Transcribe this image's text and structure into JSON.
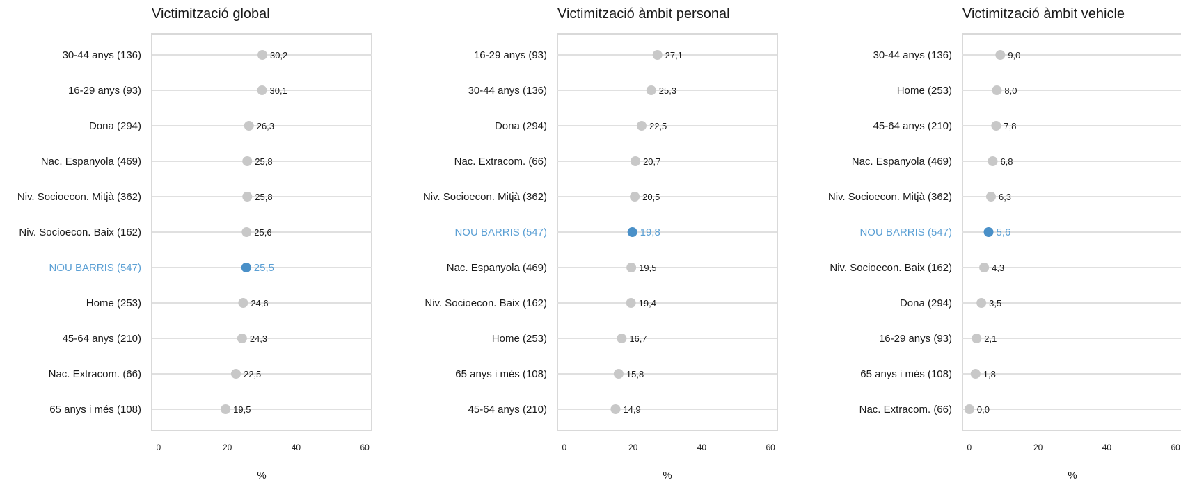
{
  "colors": {
    "highlight": "#4a90c8",
    "highlight_text": "#5a9fd4",
    "point": "#c8c8c8",
    "gridline": "#e0e0e0",
    "frame": "#d9d9d9",
    "text": "#1a1a1a"
  },
  "chart_data": [
    {
      "type": "scatter",
      "title": "Victimització global",
      "xlabel": "%",
      "xlim": [
        -2,
        62
      ],
      "xticks": [
        0,
        20,
        40,
        60
      ],
      "grid": true,
      "highlight": "NOU BARRIS (547)",
      "categories": [
        "30-44 anys (136)",
        "16-29 anys (93)",
        "Dona (294)",
        "Nac. Espanyola (469)",
        "Niv. Socioecon. Mitjà (362)",
        "Niv. Socioecon. Baix (162)",
        "NOU BARRIS (547)",
        "Home (253)",
        "45-64 anys (210)",
        "Nac. Extracom. (66)",
        "65 anys i més (108)"
      ],
      "values": [
        30.2,
        30.1,
        26.3,
        25.8,
        25.8,
        25.6,
        25.5,
        24.6,
        24.3,
        22.5,
        19.5
      ],
      "labels": [
        "30,2",
        "30,1",
        "26,3",
        "25,8",
        "25,8",
        "25,6",
        "25,5",
        "24,6",
        "24,3",
        "22,5",
        "19,5"
      ]
    },
    {
      "type": "scatter",
      "title": "Victimització àmbit personal",
      "xlabel": "%",
      "xlim": [
        -2,
        62
      ],
      "xticks": [
        0,
        20,
        40,
        60
      ],
      "grid": true,
      "highlight": "NOU BARRIS (547)",
      "categories": [
        "16-29 anys (93)",
        "30-44 anys (136)",
        "Dona (294)",
        "Nac. Extracom. (66)",
        "Niv. Socioecon. Mitjà (362)",
        "NOU BARRIS (547)",
        "Nac. Espanyola (469)",
        "Niv. Socioecon. Baix (162)",
        "Home (253)",
        "65 anys i més (108)",
        "45-64 anys (210)"
      ],
      "values": [
        27.1,
        25.3,
        22.5,
        20.7,
        20.5,
        19.8,
        19.5,
        19.4,
        16.7,
        15.8,
        14.9
      ],
      "labels": [
        "27,1",
        "25,3",
        "22,5",
        "20,7",
        "20,5",
        "19,8",
        "19,5",
        "19,4",
        "16,7",
        "15,8",
        "14,9"
      ]
    },
    {
      "type": "scatter",
      "title": "Victimització àmbit vehicle",
      "xlabel": "%",
      "xlim": [
        -2,
        62
      ],
      "xticks": [
        0,
        20,
        40,
        60
      ],
      "grid": true,
      "highlight": "NOU BARRIS (547)",
      "categories": [
        "30-44 anys (136)",
        "Home (253)",
        "45-64 anys (210)",
        "Nac. Espanyola (469)",
        "Niv. Socioecon. Mitjà (362)",
        "NOU BARRIS (547)",
        "Niv. Socioecon. Baix (162)",
        "Dona (294)",
        "16-29 anys (93)",
        "65 anys i més (108)",
        "Nac. Extracom. (66)"
      ],
      "values": [
        9.0,
        8.0,
        7.8,
        6.8,
        6.3,
        5.6,
        4.3,
        3.5,
        2.1,
        1.8,
        0.0
      ],
      "labels": [
        "9,0",
        "8,0",
        "7,8",
        "6,8",
        "6,3",
        "5,6",
        "4,3",
        "3,5",
        "2,1",
        "1,8",
        "0,0"
      ]
    }
  ]
}
